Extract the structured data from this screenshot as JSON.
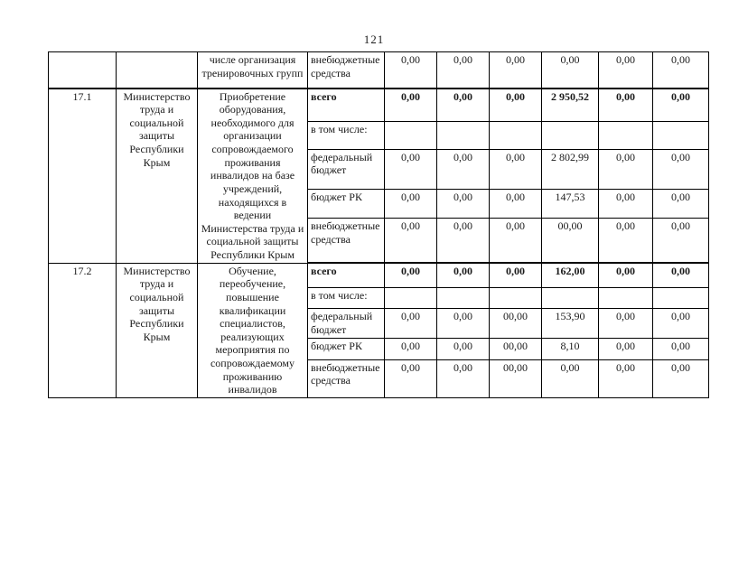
{
  "page": {
    "number": "121"
  },
  "table": {
    "carryover_row": {
      "activity": "числе организация тренировочных групп",
      "budget_label": "внебюджетные средства",
      "values": [
        "0,00",
        "0,00",
        "0,00",
        "0,00",
        "0,00",
        "0,00"
      ]
    },
    "sections": [
      {
        "index": "17.1",
        "executor": "Министерство труда и социальной защиты Республики Крым",
        "activity": "Приобретение оборудования, необходимого для организации сопровождаемого проживания инвалидов на базе учреждений, находящихся в ведении Министерства труда и социальной защиты Республики Крым",
        "rows": [
          {
            "label": "всего",
            "bold": true,
            "values": [
              "0,00",
              "0,00",
              "0,00",
              "2 950,52",
              "0,00",
              "0,00"
            ]
          },
          {
            "label": "в том числе:",
            "bold": false,
            "values": [
              "",
              "",
              "",
              "",
              "",
              ""
            ]
          },
          {
            "label": "федеральный бюджет",
            "bold": false,
            "values": [
              "0,00",
              "0,00",
              "0,00",
              "2 802,99",
              "0,00",
              "0,00"
            ]
          },
          {
            "label": "бюджет РК",
            "bold": false,
            "values": [
              "0,00",
              "0,00",
              "0,00",
              "147,53",
              "0,00",
              "0,00"
            ]
          },
          {
            "label": "внебюджетные средства",
            "bold": false,
            "values": [
              "0,00",
              "0,00",
              "0,00",
              "00,00",
              "0,00",
              "0,00"
            ]
          }
        ]
      },
      {
        "index": "17.2",
        "executor": "Министерство труда и социальной защиты Республики Крым",
        "activity": "Обучение, переобучение, повышение квалификации специалистов, реализующих мероприятия по сопровождаемому проживанию инвалидов",
        "rows": [
          {
            "label": "всего",
            "bold": true,
            "values": [
              "0,00",
              "0,00",
              "0,00",
              "162,00",
              "0,00",
              "0,00"
            ]
          },
          {
            "label": "в том числе:",
            "bold": false,
            "values": [
              "",
              "",
              "",
              "",
              "",
              ""
            ]
          },
          {
            "label": "федеральный бюджет",
            "bold": false,
            "values": [
              "0,00",
              "0,00",
              "00,00",
              "153,90",
              "0,00",
              "0,00"
            ]
          },
          {
            "label": "бюджет РК",
            "bold": false,
            "values": [
              "0,00",
              "0,00",
              "00,00",
              "8,10",
              "0,00",
              "0,00"
            ]
          },
          {
            "label": "внебюджетные средства",
            "bold": false,
            "values": [
              "0,00",
              "0,00",
              "00,00",
              "0,00",
              "0,00",
              "0,00"
            ]
          }
        ]
      }
    ]
  }
}
